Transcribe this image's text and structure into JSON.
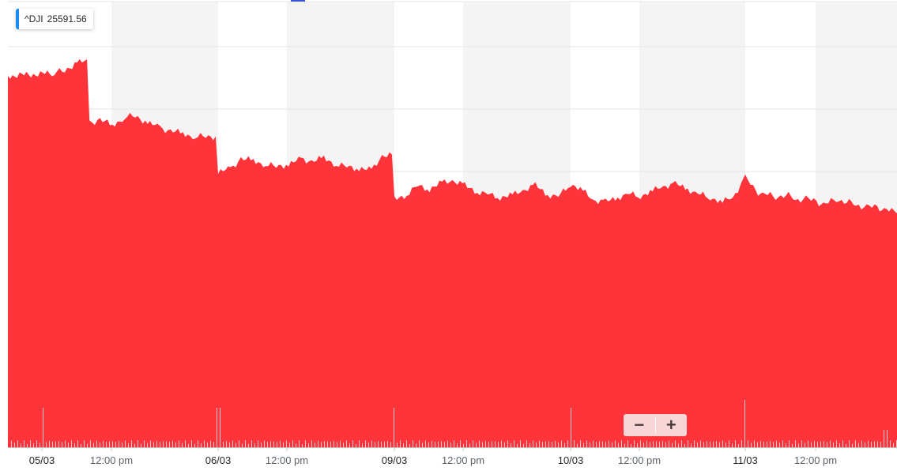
{
  "legend": {
    "symbol": "^DJI",
    "value": "25591.56",
    "color": "#1a8cf0"
  },
  "zoom": {
    "minus_label": "−",
    "plus_label": "+"
  },
  "colors": {
    "area": "#ff333a",
    "volume": "#ffffff",
    "band": "#f4f4f4",
    "grid": "#e6e6e6",
    "axis_text": "#5b636a",
    "date_text": "#26282a"
  },
  "chart_data": {
    "type": "area",
    "symbol": "^DJI",
    "last_value": 25591.56,
    "y_scale": "price (no axis labels shown)",
    "x_tick_labels": [
      "05/03",
      "12:00 pm",
      "06/03",
      "12:00 pm",
      "09/03",
      "12:00 pm",
      "10/03",
      "12:00 pm",
      "11/03",
      "12:00 pm"
    ],
    "x": [
      0,
      0.07,
      0.13,
      0.2,
      0.27,
      0.33,
      0.4,
      0.47,
      0.53,
      0.6,
      0.67,
      0.73,
      0.8,
      0.87,
      0.93,
      1,
      1.07,
      1.13,
      1.2,
      1.27,
      1.33,
      1.4,
      1.47,
      1.53,
      1.6,
      1.67,
      1.73,
      1.8,
      1.87,
      1.93,
      2,
      2.07,
      2.13,
      2.2,
      2.27,
      2.33,
      2.4,
      2.47,
      2.53,
      2.6,
      2.67,
      2.73,
      2.8,
      2.87,
      2.93,
      3,
      3.07,
      3.13,
      3.2,
      3.27,
      3.33,
      3.4,
      3.47,
      3.53,
      3.6,
      3.67,
      3.73,
      3.8,
      3.87,
      3.93,
      4,
      4.07,
      4.13,
      4.2,
      4.27,
      4.33,
      4.4,
      4.47,
      4.53,
      4.6,
      4.67,
      4.73,
      4.8,
      4.87,
      4.93,
      5
    ],
    "values": [
      26050,
      26060,
      26070,
      26100,
      25880,
      25890,
      25870,
      25900,
      25905,
      25880,
      25860,
      25850,
      25840,
      25830,
      25830,
      25700,
      25710,
      25750,
      25740,
      25730,
      25720,
      25730,
      25745,
      25740,
      25750,
      25730,
      25720,
      25715,
      25705,
      25760,
      25600,
      25620,
      25650,
      25640,
      25660,
      25670,
      25650,
      25630,
      25620,
      25610,
      25615,
      25635,
      25650,
      25620,
      25610,
      25660,
      25630,
      25600,
      25590,
      25610,
      25620,
      25615,
      25630,
      25650,
      25655,
      25640,
      25620,
      25610,
      25590,
      25610,
      25680,
      25630,
      25620,
      25610,
      25620,
      25600,
      25605,
      25590,
      25585,
      25600,
      25595,
      25580,
      25575,
      25570,
      25565,
      25550
    ],
    "volume_ticks_visible": true
  }
}
